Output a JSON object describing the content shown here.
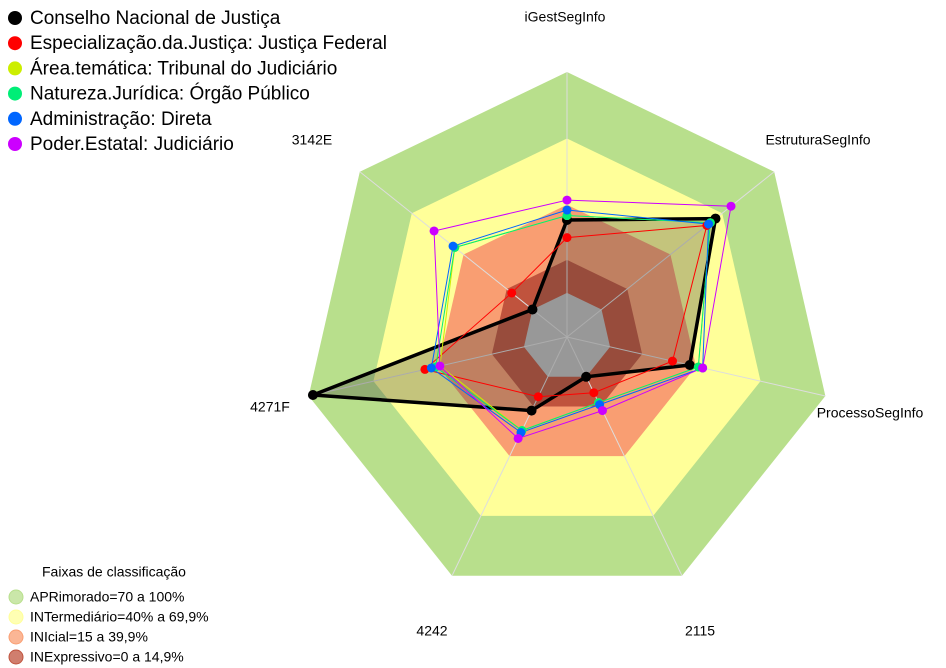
{
  "chart_data": {
    "type": "radar",
    "axes": [
      "iGestSegInfo",
      "EstruturaSegInfo",
      "ProcessoSegInfo",
      "2115",
      "4242",
      "4271F",
      "3142E"
    ],
    "rlim": [
      -20,
      100
    ],
    "series": [
      {
        "name": "Conselho Nacional de Justiça",
        "color": "#000000",
        "values": [
          33,
          66,
          37,
          0,
          17,
          98,
          0
        ]
      },
      {
        "name": "Especialização.da.Justiça: Justiça Federal",
        "color": "#ff0000",
        "values": [
          25,
          61,
          29,
          8,
          10,
          46,
          12
        ]
      },
      {
        "name": "Área.temática: Tribunal do Judiciário",
        "color": "#ccee00",
        "values": [
          35,
          63,
          41,
          13,
          27,
          39,
          45
        ]
      },
      {
        "name": "Natureza.Jurídica: Órgão Público",
        "color": "#00ee77",
        "values": [
          35,
          63,
          41,
          13,
          27,
          41,
          45
        ]
      },
      {
        "name": "Administração: Direta",
        "color": "#0066ff",
        "values": [
          37.5,
          62,
          43,
          14,
          28,
          43,
          46
        ]
      },
      {
        "name": "Poder.Estatal: Judiciário",
        "color": "#cc00ff",
        "values": [
          42,
          75,
          43,
          17,
          31,
          39,
          57
        ]
      }
    ],
    "bands_title": "Faixas de classificação",
    "bands": [
      {
        "label": "APRimorado=70 a 100%",
        "color": "#b8df8c",
        "min": 70,
        "max": 100
      },
      {
        "label": "INTermediário=40% a 69,9%",
        "color": "#ffff99",
        "min": 40,
        "max": 69.9
      },
      {
        "label": "INIcial=15 a 39,9%",
        "color": "#f99e72",
        "min": 15,
        "max": 39.9
      },
      {
        "label": "INExpressivo=0 a 14,9%",
        "color": "#c0533d",
        "min": 0,
        "max": 14.9
      }
    ],
    "center_color": "#c0c0c0"
  }
}
